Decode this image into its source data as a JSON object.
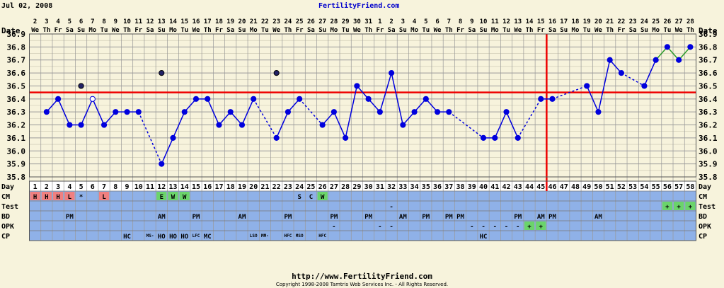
{
  "header": {
    "date": "Jul 02, 2008",
    "site": "FertilityFriend.com"
  },
  "footer": {
    "url": "http://www.FertilityFriend.com",
    "copyright": "Copyright 1998-2008 Tamtris Web Services Inc. - All Rights Reserved."
  },
  "chart_data": {
    "type": "line",
    "title": "",
    "ylabel": "Temp",
    "ylim": [
      35.8,
      36.9
    ],
    "yticks": [
      "36.9",
      "36.8",
      "36.7",
      "36.6",
      "36.5",
      "36.4",
      "36.3",
      "36.2",
      "36.1",
      "36.0",
      "35.9",
      "35.8"
    ],
    "row_labels": {
      "date": "Date",
      "day": "Day",
      "cm": "CM",
      "test": "Test",
      "bd": "BD",
      "opk": "OPK",
      "cp": "CP"
    },
    "dates": [
      "2",
      "3",
      "4",
      "5",
      "6",
      "7",
      "8",
      "9",
      "10",
      "11",
      "12",
      "13",
      "14",
      "15",
      "16",
      "17",
      "18",
      "19",
      "20",
      "21",
      "22",
      "23",
      "24",
      "25",
      "26",
      "27",
      "28",
      "29",
      "30",
      "31",
      "1",
      "2",
      "3",
      "4",
      "5",
      "6",
      "7",
      "8",
      "9",
      "10",
      "11",
      "12",
      "13",
      "14",
      "15",
      "16",
      "17",
      "18",
      "19",
      "20",
      "21",
      "22",
      "23",
      "24",
      "25",
      "26",
      "27",
      "28"
    ],
    "weekdays": [
      "We",
      "Th",
      "Fr",
      "Sa",
      "Su",
      "Mo",
      "Tu",
      "We",
      "Th",
      "Fr",
      "Sa",
      "Su",
      "Mo",
      "Tu",
      "We",
      "Th",
      "Fr",
      "Sa",
      "Su",
      "Mo",
      "Tu",
      "We",
      "Th",
      "Fr",
      "Sa",
      "Su",
      "Mo",
      "Tu",
      "We",
      "Th",
      "Fr",
      "Sa",
      "Su",
      "Mo",
      "Tu",
      "We",
      "Th",
      "Fr",
      "Sa",
      "Su",
      "Mo",
      "Tu",
      "We",
      "Th",
      "Fr",
      "Sa",
      "Su",
      "Mo",
      "Tu",
      "We",
      "Th",
      "Fr",
      "Sa",
      "Su",
      "Mo",
      "Tu",
      "We",
      "Th"
    ],
    "days": [
      "1",
      "2",
      "3",
      "4",
      "5",
      "6",
      "7",
      "8",
      "9",
      "10",
      "11",
      "12",
      "13",
      "14",
      "15",
      "16",
      "17",
      "18",
      "19",
      "20",
      "21",
      "22",
      "23",
      "24",
      "25",
      "26",
      "27",
      "28",
      "29",
      "30",
      "31",
      "32",
      "33",
      "34",
      "35",
      "36",
      "37",
      "38",
      "39",
      "40",
      "41",
      "42",
      "43",
      "44",
      "45",
      "46",
      "47",
      "48",
      "49",
      "50",
      "51",
      "52",
      "53",
      "54",
      "55",
      "56",
      "57",
      "58"
    ],
    "temps": [
      null,
      36.3,
      36.4,
      36.2,
      36.2,
      36.4,
      36.2,
      36.3,
      36.3,
      36.3,
      null,
      35.9,
      36.1,
      36.3,
      36.4,
      36.4,
      36.2,
      36.3,
      36.2,
      36.4,
      null,
      36.1,
      36.3,
      36.4,
      null,
      36.2,
      36.3,
      36.1,
      36.5,
      36.4,
      36.3,
      36.6,
      36.2,
      36.3,
      36.4,
      36.3,
      36.3,
      null,
      null,
      36.1,
      36.1,
      36.3,
      36.1,
      null,
      36.4,
      36.4,
      null,
      null,
      36.5,
      36.3,
      36.7,
      36.6,
      null,
      36.5,
      36.7,
      36.8,
      36.7,
      36.8
    ],
    "discarded": [
      null,
      null,
      null,
      null,
      36.5,
      null,
      null,
      null,
      null,
      null,
      null,
      36.6,
      null,
      null,
      null,
      null,
      null,
      null,
      null,
      null,
      null,
      36.6,
      null,
      null,
      null,
      null,
      null,
      null,
      null,
      null,
      null,
      null,
      null,
      null,
      null,
      null,
      null,
      null,
      null,
      null,
      null,
      null,
      null,
      null,
      null,
      null,
      null,
      null,
      null,
      null,
      null,
      null,
      null,
      null,
      null,
      null,
      null,
      null
    ],
    "open_points": [
      6
    ],
    "coverline": 36.45,
    "ovulation_day": 46,
    "colors": {
      "line": "#0000dd",
      "coverline": "#ee0000",
      "grid": "#999999",
      "plot_bg": "#f7f3dc",
      "cm_row_bg": "#8fb1e8",
      "cm_heavy": "#f08080",
      "cm_ew": "#6bd46b",
      "post_ov_line": "#2a9a2a"
    },
    "cm": [
      {
        "day": 1,
        "text": "H",
        "bg": "cm_heavy"
      },
      {
        "day": 2,
        "text": "H",
        "bg": "cm_heavy"
      },
      {
        "day": 3,
        "text": "H",
        "bg": "cm_heavy"
      },
      {
        "day": 4,
        "text": "L",
        "bg": "cm_heavy"
      },
      {
        "day": 5,
        "text": "*",
        "bg": ""
      },
      {
        "day": 7,
        "text": "L",
        "bg": "cm_heavy"
      },
      {
        "day": 12,
        "text": "E",
        "bg": "cm_ew"
      },
      {
        "day": 13,
        "text": "W",
        "bg": "cm_ew"
      },
      {
        "day": 14,
        "text": "W",
        "bg": "cm_ew"
      },
      {
        "day": 24,
        "text": "S",
        "bg": ""
      },
      {
        "day": 25,
        "text": "C",
        "bg": ""
      },
      {
        "day": 26,
        "text": "W",
        "bg": "cm_ew"
      }
    ],
    "test": [
      {
        "day": 32,
        "text": "-",
        "bg": ""
      },
      {
        "day": 56,
        "text": "+",
        "bg": "cm_ew"
      },
      {
        "day": 57,
        "text": "+",
        "bg": "cm_ew"
      },
      {
        "day": 58,
        "text": "+",
        "bg": "cm_ew"
      }
    ],
    "bd": [
      {
        "day": 4,
        "text": "PM"
      },
      {
        "day": 12,
        "text": "AM"
      },
      {
        "day": 15,
        "text": "PM"
      },
      {
        "day": 19,
        "text": "AM"
      },
      {
        "day": 23,
        "text": "PM"
      },
      {
        "day": 27,
        "text": "PM"
      },
      {
        "day": 30,
        "text": "PM"
      },
      {
        "day": 33,
        "text": "AM"
      },
      {
        "day": 35,
        "text": "PM"
      },
      {
        "day": 37,
        "text": "PM"
      },
      {
        "day": 38,
        "text": "PM"
      },
      {
        "day": 43,
        "text": "PM"
      },
      {
        "day": 45,
        "text": "AM"
      },
      {
        "day": 46,
        "text": "PM"
      },
      {
        "day": 50,
        "text": "AM"
      }
    ],
    "opk": [
      {
        "day": 27,
        "text": "-",
        "bg": ""
      },
      {
        "day": 31,
        "text": "-",
        "bg": ""
      },
      {
        "day": 32,
        "text": "-",
        "bg": ""
      },
      {
        "day": 39,
        "text": "-",
        "bg": ""
      },
      {
        "day": 40,
        "text": "-",
        "bg": ""
      },
      {
        "day": 41,
        "text": "-",
        "bg": ""
      },
      {
        "day": 42,
        "text": "-",
        "bg": ""
      },
      {
        "day": 43,
        "text": "-",
        "bg": ""
      },
      {
        "day": 44,
        "text": "+",
        "bg": "cm_ew"
      },
      {
        "day": 45,
        "text": "+",
        "bg": "cm_ew"
      }
    ],
    "cp": [
      {
        "day": 9,
        "text": "HC",
        "small": false
      },
      {
        "day": 11,
        "text": "MS-",
        "small": true
      },
      {
        "day": 12,
        "text": "HO",
        "small": false
      },
      {
        "day": 13,
        "text": "HO",
        "small": false
      },
      {
        "day": 14,
        "text": "HO",
        "small": false
      },
      {
        "day": 15,
        "text": "LFC",
        "small": true
      },
      {
        "day": 16,
        "text": "MC",
        "small": false
      },
      {
        "day": 20,
        "text": "LSO",
        "small": true
      },
      {
        "day": 21,
        "text": "MM-",
        "small": true
      },
      {
        "day": 23,
        "text": "HFC",
        "small": true
      },
      {
        "day": 24,
        "text": "MSO",
        "small": true
      },
      {
        "day": 26,
        "text": "HFC",
        "small": true
      },
      {
        "day": 40,
        "text": "HC",
        "small": false
      }
    ]
  }
}
